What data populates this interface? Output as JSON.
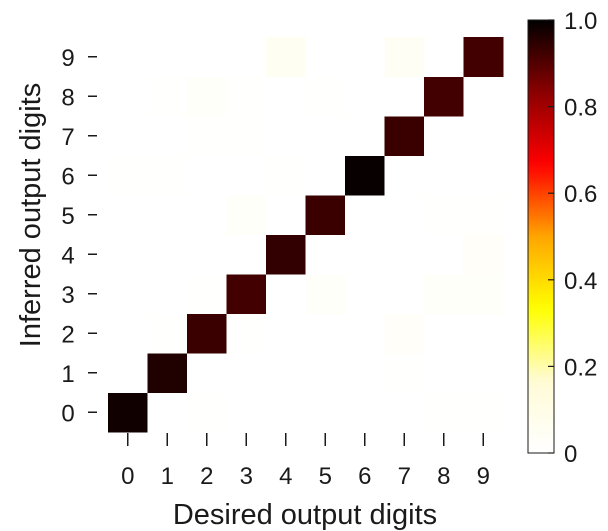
{
  "chart_data": {
    "type": "heatmap",
    "xlabel": "Desired output digits",
    "ylabel": "Inferred output digits",
    "x_categories": [
      "0",
      "1",
      "2",
      "3",
      "4",
      "5",
      "6",
      "7",
      "8",
      "9"
    ],
    "y_categories": [
      "0",
      "1",
      "2",
      "3",
      "4",
      "5",
      "6",
      "7",
      "8",
      "9"
    ],
    "value_range": [
      0,
      1
    ],
    "colorscale": [
      "#ffffff",
      "#fffbd6",
      "#ffff00",
      "#ffa500",
      "#ff0000",
      "#8b0000",
      "#000000"
    ],
    "colorbar_ticks": [
      "0",
      "0.2",
      "0.4",
      "0.6",
      "0.8",
      "1.0"
    ],
    "colorbar_values": [
      0,
      0.2,
      0.4,
      0.6,
      0.8,
      1.0
    ],
    "z": [
      [
        0.98,
        0.0,
        0.01,
        0.0,
        0.0,
        0.0,
        0.0,
        0.0,
        0.01,
        0.01
      ],
      [
        0.0,
        0.96,
        0.0,
        0.0,
        0.0,
        0.0,
        0.0,
        0.01,
        0.0,
        0.0
      ],
      [
        0.0,
        0.01,
        0.93,
        0.01,
        0.0,
        0.0,
        0.0,
        0.03,
        0.0,
        0.0
      ],
      [
        0.0,
        0.0,
        0.01,
        0.92,
        0.0,
        0.02,
        0.0,
        0.0,
        0.02,
        0.02
      ],
      [
        0.0,
        0.0,
        0.0,
        0.0,
        0.94,
        0.0,
        0.0,
        0.0,
        0.0,
        0.03
      ],
      [
        0.0,
        0.0,
        0.0,
        0.02,
        0.0,
        0.93,
        0.0,
        0.0,
        0.01,
        0.01
      ],
      [
        0.01,
        0.01,
        0.0,
        0.0,
        0.01,
        0.0,
        0.99,
        0.0,
        0.0,
        0.0
      ],
      [
        0.0,
        0.0,
        0.01,
        0.01,
        0.0,
        0.0,
        0.0,
        0.93,
        0.0,
        0.0
      ],
      [
        0.0,
        0.01,
        0.02,
        0.01,
        0.0,
        0.01,
        0.0,
        0.0,
        0.92,
        0.0
      ],
      [
        0.0,
        0.0,
        0.0,
        0.0,
        0.05,
        0.0,
        0.0,
        0.04,
        0.0,
        0.92
      ]
    ]
  }
}
